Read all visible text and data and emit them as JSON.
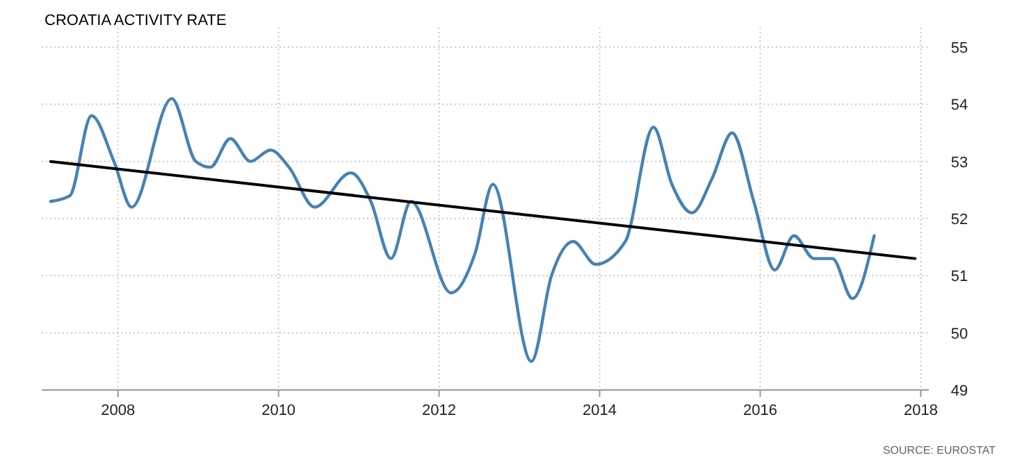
{
  "chart_data": {
    "type": "line",
    "title": "CROATIA ACTIVITY RATE",
    "annotations": [
      "SOURCE: EUROSTAT"
    ],
    "xlim": [
      2007.05,
      2018.1
    ],
    "xticks": [
      2008,
      2010,
      2012,
      2014,
      2016,
      2018
    ],
    "ylim": [
      49,
      55
    ],
    "yticks": [
      49,
      50,
      51,
      52,
      53,
      54,
      55
    ],
    "grid": true,
    "series": [
      {
        "color": "#4682b4",
        "x": [
          2007.16,
          2007.4,
          2007.67,
          2007.95,
          2008.17,
          2008.67,
          2008.97,
          2009.15,
          2009.4,
          2009.65,
          2009.9,
          2010.13,
          2010.45,
          2010.9,
          2011.15,
          2011.4,
          2011.65,
          2012.15,
          2012.45,
          2012.67,
          2013.15,
          2013.4,
          2013.67,
          2013.95,
          2014.32,
          2014.67,
          2014.9,
          2015.15,
          2015.4,
          2015.65,
          2015.92,
          2016.18,
          2016.42,
          2016.67,
          2016.9,
          2017.15,
          2017.42
        ],
        "values": [
          52.3,
          52.4,
          53.8,
          53.0,
          52.2,
          54.1,
          53.0,
          52.9,
          53.4,
          53.0,
          53.2,
          52.9,
          52.2,
          52.8,
          52.3,
          51.3,
          52.3,
          50.7,
          51.4,
          52.6,
          49.5,
          51.0,
          51.6,
          51.2,
          51.6,
          53.6,
          52.6,
          52.1,
          52.7,
          53.5,
          52.3,
          51.1,
          51.7,
          51.3,
          51.3,
          50.6,
          51.7
        ]
      },
      {
        "type": "line",
        "color": "#000000",
        "x": [
          2007.16,
          2017.93
        ],
        "values": [
          53.0,
          51.3
        ]
      }
    ]
  }
}
